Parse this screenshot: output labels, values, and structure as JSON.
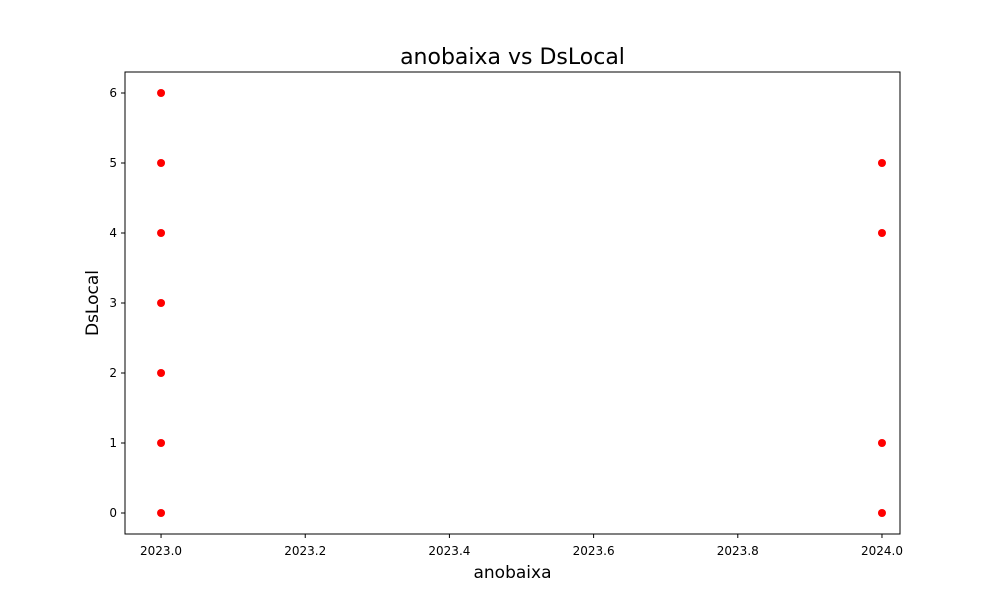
{
  "chart_data": {
    "type": "scatter",
    "title": "anobaixa vs DsLocal",
    "xlabel": "anobaixa",
    "ylabel": "DsLocal",
    "xlim": [
      2022.95,
      2024.025
    ],
    "ylim": [
      -0.3,
      6.3
    ],
    "x_ticks": [
      2023.0,
      2023.2,
      2023.4,
      2023.6,
      2023.8,
      2024.0
    ],
    "x_tick_labels": [
      "2023.0",
      "2023.2",
      "2023.4",
      "2023.6",
      "2023.8",
      "2024.0"
    ],
    "y_ticks": [
      0,
      1,
      2,
      3,
      4,
      5,
      6
    ],
    "y_tick_labels": [
      "0",
      "1",
      "2",
      "3",
      "4",
      "5",
      "6"
    ],
    "grid": false,
    "marker_color": "#ff0000",
    "points": [
      {
        "x": 2023.0,
        "y": 0
      },
      {
        "x": 2023.0,
        "y": 1
      },
      {
        "x": 2023.0,
        "y": 2
      },
      {
        "x": 2023.0,
        "y": 3
      },
      {
        "x": 2023.0,
        "y": 4
      },
      {
        "x": 2023.0,
        "y": 5
      },
      {
        "x": 2023.0,
        "y": 6
      },
      {
        "x": 2024.0,
        "y": 0
      },
      {
        "x": 2024.0,
        "y": 1
      },
      {
        "x": 2024.0,
        "y": 4
      },
      {
        "x": 2024.0,
        "y": 5
      }
    ]
  }
}
